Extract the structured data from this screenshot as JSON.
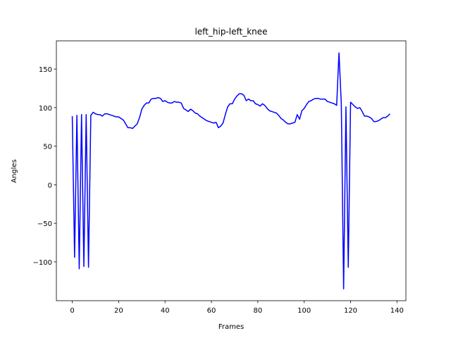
{
  "chart_data": {
    "type": "line",
    "title": "left_hip-left_knee",
    "x_label": "Frames",
    "y_label": "Angles",
    "x": [
      0,
      1,
      2,
      3,
      4,
      5,
      6,
      7,
      8,
      9,
      10,
      11,
      12,
      13,
      14,
      15,
      16,
      17,
      18,
      19,
      20,
      21,
      22,
      23,
      24,
      25,
      26,
      27,
      28,
      29,
      30,
      31,
      32,
      33,
      34,
      35,
      36,
      37,
      38,
      39,
      40,
      41,
      42,
      43,
      44,
      45,
      46,
      47,
      48,
      49,
      50,
      51,
      52,
      53,
      54,
      55,
      56,
      57,
      58,
      59,
      60,
      61,
      62,
      63,
      64,
      65,
      66,
      67,
      68,
      69,
      70,
      71,
      72,
      73,
      74,
      75,
      76,
      77,
      78,
      79,
      80,
      81,
      82,
      83,
      84,
      85,
      86,
      87,
      88,
      89,
      90,
      91,
      92,
      93,
      94,
      95,
      96,
      97,
      98,
      99,
      100,
      101,
      102,
      103,
      104,
      105,
      106,
      107,
      108,
      109,
      110,
      111,
      112,
      113,
      114,
      115,
      116,
      117,
      118,
      119,
      120,
      121,
      122,
      123,
      124,
      125,
      126,
      127,
      128,
      129,
      130,
      131,
      132,
      133,
      134,
      135,
      136,
      137
    ],
    "series": [
      {
        "color": "#0000ff",
        "values": [
          89,
          -94,
          90,
          -109,
          91,
          -106,
          91,
          -107,
          90,
          94,
          92,
          91,
          91,
          89,
          92,
          92,
          91,
          90,
          89,
          88,
          88,
          86,
          84,
          79,
          74,
          74,
          73,
          76,
          79,
          87,
          98,
          103,
          106,
          106,
          111,
          112,
          112,
          113,
          112,
          108,
          109,
          107,
          106,
          106,
          108,
          107,
          107,
          106,
          99,
          97,
          95,
          98,
          96,
          93,
          92,
          89,
          87,
          85,
          83,
          82,
          81,
          80,
          81,
          74,
          76,
          80,
          91,
          101,
          105,
          105,
          111,
          115,
          118,
          118,
          116,
          109,
          111,
          109,
          109,
          105,
          104,
          102,
          105,
          103,
          99,
          96,
          95,
          94,
          93,
          90,
          86,
          84,
          81,
          79,
          79,
          80,
          81,
          91,
          85,
          96,
          99,
          104,
          108,
          109,
          111,
          112,
          112,
          111,
          111,
          111,
          108,
          107,
          106,
          105,
          103,
          171,
          105,
          -135,
          101,
          -107,
          107,
          104,
          101,
          99,
          100,
          95,
          89,
          89,
          88,
          86,
          82,
          82,
          83,
          85,
          87,
          87,
          89,
          92
        ]
      }
    ],
    "xlim": [
      -6.85,
      143.85
    ],
    "ylim": [
      -150.3,
      186.6
    ],
    "xticks": [
      0,
      20,
      40,
      60,
      80,
      100,
      120,
      140
    ],
    "yticks": [
      {
        "value": -100,
        "label": "−100"
      },
      {
        "value": -50,
        "label": "−50"
      },
      0,
      50,
      100,
      150
    ]
  }
}
